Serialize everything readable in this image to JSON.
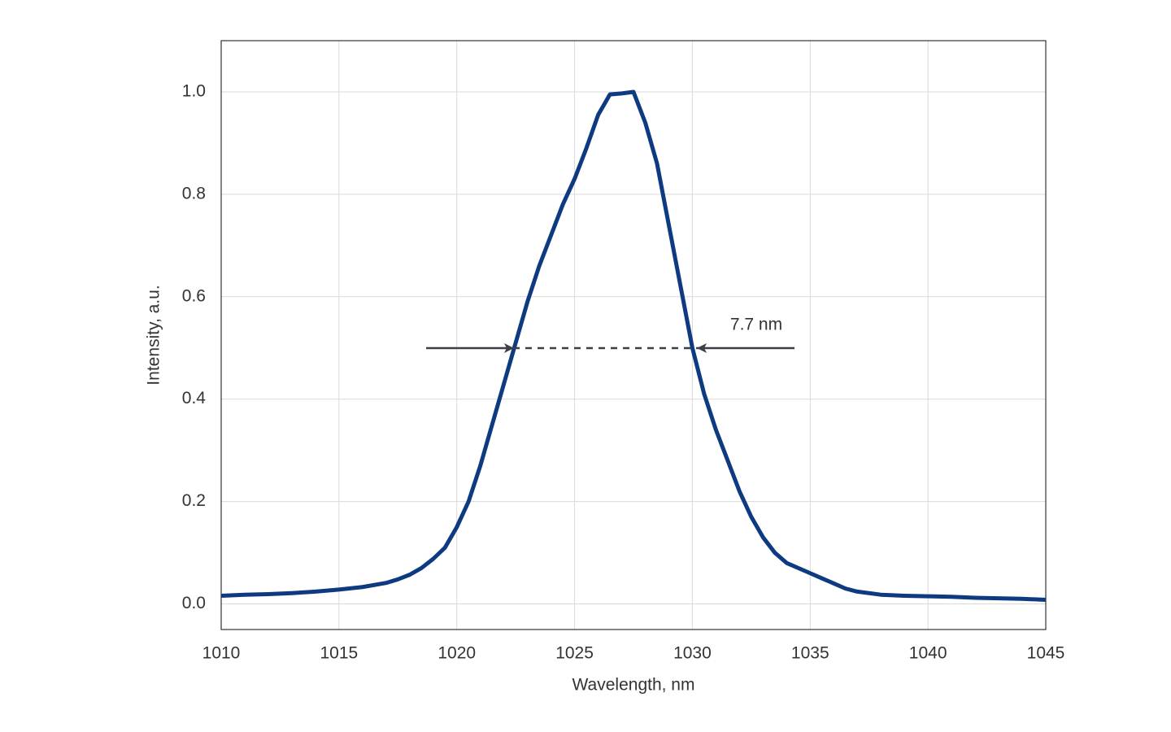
{
  "chart_data": {
    "type": "line",
    "x_label": "Wavelength, nm",
    "y_label": "Intensity, a.u.",
    "annotation": "7.7 nm",
    "xlim": [
      1010,
      1045
    ],
    "ylim": [
      -0.05,
      1.1
    ],
    "xticks": [
      1010,
      1015,
      1020,
      1025,
      1030,
      1035,
      1040,
      1045
    ],
    "yticks": [
      {
        "value": 0,
        "label": "0.0"
      },
      0.2,
      0.4,
      0.6,
      0.8,
      {
        "value": 1,
        "label": "1.0"
      }
    ],
    "grid": true,
    "x": [
      1010,
      1011,
      1012,
      1013,
      1014,
      1015,
      1016,
      1017,
      1017.5,
      1018,
      1018.5,
      1019,
      1019.5,
      1020,
      1020.5,
      1021,
      1021.5,
      1022,
      1022.5,
      1023,
      1023.5,
      1024,
      1024.5,
      1025,
      1025.5,
      1026,
      1026.5,
      1027,
      1027.5,
      1028,
      1028.5,
      1029,
      1029.5,
      1030,
      1030.5,
      1031,
      1031.5,
      1032,
      1032.5,
      1033,
      1033.5,
      1034,
      1035,
      1035.5,
      1036,
      1036.5,
      1037,
      1038,
      1039,
      1040,
      1041,
      1042,
      1043,
      1044,
      1045
    ],
    "series": [
      {
        "color": "#0d3a80",
        "values": [
          0.016,
          0.018,
          0.019,
          0.021,
          0.024,
          0.028,
          0.033,
          0.041,
          0.048,
          0.057,
          0.07,
          0.088,
          0.11,
          0.15,
          0.2,
          0.27,
          0.35,
          0.43,
          0.51,
          0.59,
          0.66,
          0.72,
          0.78,
          0.83,
          0.89,
          0.955,
          0.995,
          0.997,
          1.0,
          0.94,
          0.86,
          0.74,
          0.62,
          0.5,
          0.41,
          0.34,
          0.28,
          0.22,
          0.17,
          0.13,
          0.1,
          0.08,
          0.06,
          0.05,
          0.04,
          0.03,
          0.024,
          0.018,
          0.016,
          0.015,
          0.014,
          0.012,
          0.011,
          0.01,
          0.008
        ]
      }
    ]
  }
}
